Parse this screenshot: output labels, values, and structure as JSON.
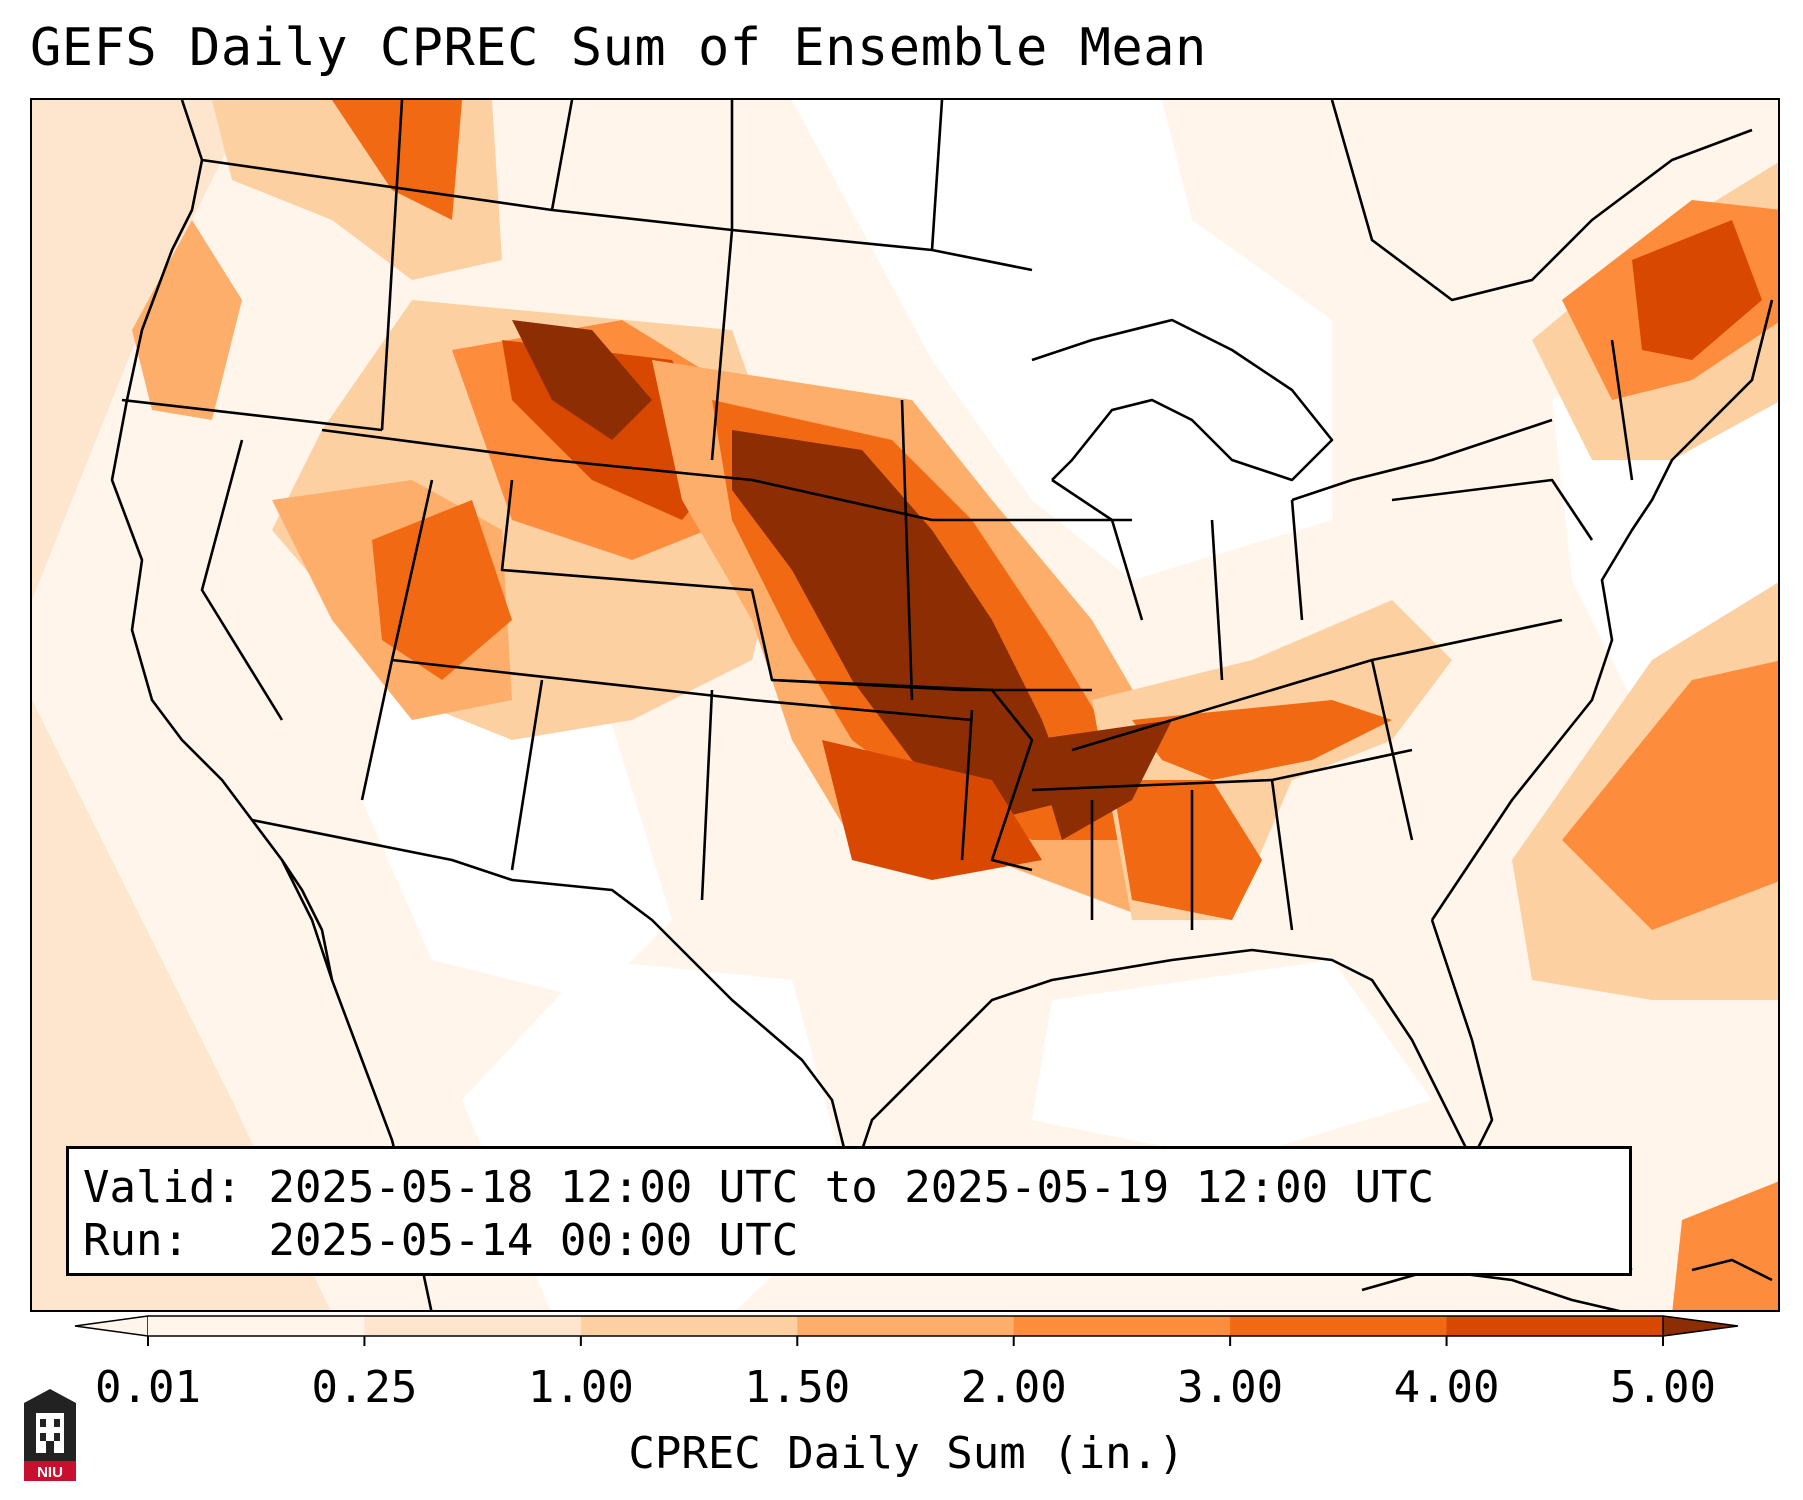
{
  "title": "GEFS Daily CPREC Sum of Ensemble Mean",
  "info": {
    "valid_label": "Valid:",
    "valid_value": "2025-05-18 12:00 UTC to 2025-05-19 12:00 UTC",
    "run_label": "Run:",
    "run_value": "2025-05-14 00:00 UTC"
  },
  "colorbar": {
    "label": "CPREC Daily Sum (in.)",
    "ticks": [
      "0.01",
      "0.25",
      "1.00",
      "1.50",
      "2.00",
      "3.00",
      "4.00",
      "5.00"
    ],
    "colors": [
      "#fff5eb",
      "#fee6ce",
      "#fdd0a2",
      "#fdae6b",
      "#fd8d3c",
      "#f16913",
      "#d94801",
      "#8c2d04"
    ],
    "extend": "both"
  },
  "logo": {
    "text": "NIU",
    "color": "#c8102e"
  }
}
